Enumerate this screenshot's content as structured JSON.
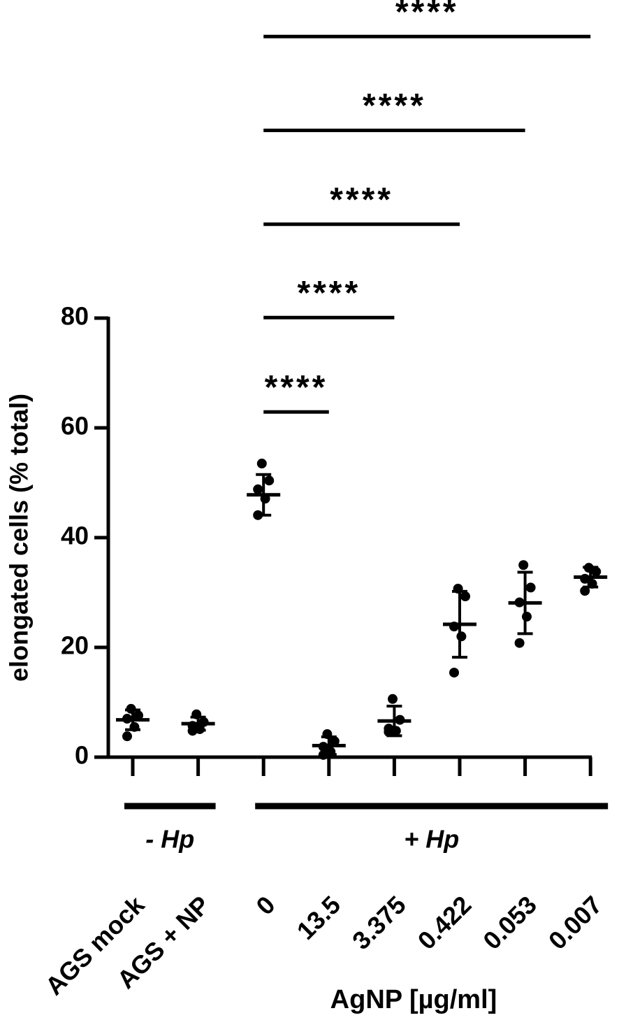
{
  "chart_data": {
    "type": "scatter",
    "y_label": "elongated cells (% total)",
    "x_label": "AgNP [µg/ml]",
    "categories": [
      "AGS mock",
      "AGS + NP",
      "0",
      "13.5",
      "3.375",
      "0.422",
      "0.053",
      "0.007"
    ],
    "points": [
      [
        8.8,
        7.6,
        7.0,
        5.5,
        3.8
      ],
      [
        7.8,
        6.4,
        5.7,
        5.1,
        4.8
      ],
      [
        53.5,
        50.4,
        48.8,
        47.1,
        44.1
      ],
      [
        4.2,
        2.9,
        1.9,
        1.0,
        0.4
      ],
      [
        10.6,
        6.8,
        5.2,
        4.8,
        4.6
      ],
      [
        30.7,
        29.3,
        23.8,
        22.0,
        15.4
      ],
      [
        35.0,
        30.9,
        28.2,
        25.6,
        20.8
      ],
      [
        34.5,
        33.8,
        32.5,
        31.6,
        30.3
      ]
    ],
    "mean": [
      6.8,
      6.1,
      47.8,
      2.1,
      6.6,
      24.2,
      28.1,
      32.8
    ],
    "sd": [
      1.8,
      1.2,
      3.7,
      1.6,
      2.7,
      6.0,
      5.6,
      1.8
    ],
    "color": "#000000",
    "ylim": [
      0,
      80
    ],
    "yticks": [
      0,
      20,
      40,
      60,
      80
    ],
    "groups": [
      {
        "label": "- Hp",
        "from": 0,
        "to": 1
      },
      {
        "label": "+ Hp",
        "from": 2,
        "to": 7
      }
    ],
    "significance": [
      {
        "from": 2,
        "to": 3,
        "y": 62.9,
        "label": "****"
      },
      {
        "from": 2,
        "to": 4,
        "y": 80.1,
        "label": "****"
      },
      {
        "from": 2,
        "to": 5,
        "y": 97.1,
        "label": "****"
      },
      {
        "from": 2,
        "to": 6,
        "y": 114.2,
        "label": "****"
      },
      {
        "from": 2,
        "to": 7,
        "y": 131.3,
        "label": "****"
      }
    ]
  }
}
